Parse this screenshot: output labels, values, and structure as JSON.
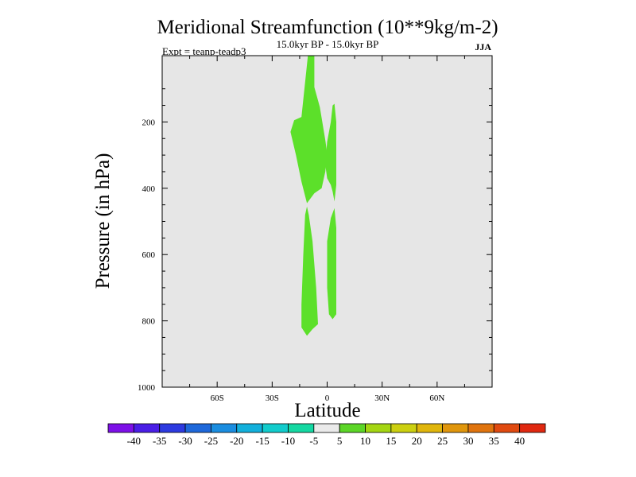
{
  "chart_data": {
    "type": "contour",
    "title": "Meridional Streamfunction (10**9kg/m-2)",
    "subtitle": "15.0kyr BP - 15.0kyr BP",
    "left_label": "Expt = teanp-teadp3",
    "right_label": "JJA",
    "xlabel": "Latitude",
    "ylabel": "Pressure (in hPa)",
    "xlim": [
      -90,
      90
    ],
    "ylim": [
      1000,
      0
    ],
    "x_ticks": [
      {
        "value": -60,
        "label": "60S"
      },
      {
        "value": -30,
        "label": "30S"
      },
      {
        "value": 0,
        "label": "0"
      },
      {
        "value": 30,
        "label": "30N"
      },
      {
        "value": 60,
        "label": "60N"
      }
    ],
    "y_ticks": [
      {
        "value": 200,
        "label": "200"
      },
      {
        "value": 400,
        "label": "400"
      },
      {
        "value": 600,
        "label": "600"
      },
      {
        "value": 800,
        "label": "800"
      },
      {
        "value": 1000,
        "label": "1000"
      }
    ],
    "background_range": "-5 to 5",
    "background_color": "#e6e6e6",
    "regions": [
      {
        "name": "upper-cell",
        "level_range": "5 to 10",
        "color": "#5ce02a",
        "polygon": [
          [
            -10.5,
            0
          ],
          [
            -7,
            0
          ],
          [
            -7,
            95
          ],
          [
            -4,
            155
          ],
          [
            -1,
            255
          ],
          [
            0,
            295
          ],
          [
            -1,
            350
          ],
          [
            -3,
            400
          ],
          [
            -7,
            415
          ],
          [
            -11,
            445
          ],
          [
            -14,
            380
          ],
          [
            -17,
            300
          ],
          [
            -20,
            230
          ],
          [
            -18,
            195
          ],
          [
            -14,
            185
          ]
        ]
      },
      {
        "name": "upper-right-branch",
        "level_range": "5 to 10",
        "color": "#5ce02a",
        "polygon": [
          [
            3,
            150
          ],
          [
            4,
            145
          ],
          [
            5,
            200
          ],
          [
            5,
            390
          ],
          [
            4,
            440
          ],
          [
            3,
            410
          ],
          [
            2,
            390
          ],
          [
            0,
            370
          ],
          [
            -1,
            330
          ],
          [
            0,
            260
          ],
          [
            2,
            200
          ]
        ]
      },
      {
        "name": "lower-cell",
        "level_range": "5 to 10",
        "color": "#5ce02a",
        "polygon": [
          [
            -11,
            455
          ],
          [
            -10,
            480
          ],
          [
            -8,
            560
          ],
          [
            -6,
            700
          ],
          [
            -5,
            810
          ],
          [
            -8,
            825
          ],
          [
            -11,
            845
          ],
          [
            -14,
            820
          ],
          [
            -14,
            750
          ],
          [
            -13,
            600
          ],
          [
            -12,
            480
          ]
        ]
      },
      {
        "name": "lower-right-branch",
        "level_range": "5 to 10",
        "color": "#5ce02a",
        "polygon": [
          [
            4,
            460
          ],
          [
            5,
            520
          ],
          [
            5,
            780
          ],
          [
            3,
            795
          ],
          [
            1,
            780
          ],
          [
            0,
            700
          ],
          [
            0,
            560
          ],
          [
            2,
            490
          ]
        ]
      }
    ],
    "colorbar": {
      "labels": [
        "-40",
        "-35",
        "-30",
        "-25",
        "-20",
        "-15",
        "-10",
        "-5",
        "5",
        "10",
        "15",
        "20",
        "25",
        "30",
        "35",
        "40"
      ],
      "colors": [
        "#7d10e8",
        "#4a1ee6",
        "#2d3ae0",
        "#1e68da",
        "#1a8de0",
        "#12b0dc",
        "#12cccc",
        "#14d8a2",
        "#eaeaea",
        "#5cd627",
        "#a4d612",
        "#ccd010",
        "#e0b60c",
        "#e0960c",
        "#e0740e",
        "#e04a10",
        "#e02810"
      ]
    }
  }
}
